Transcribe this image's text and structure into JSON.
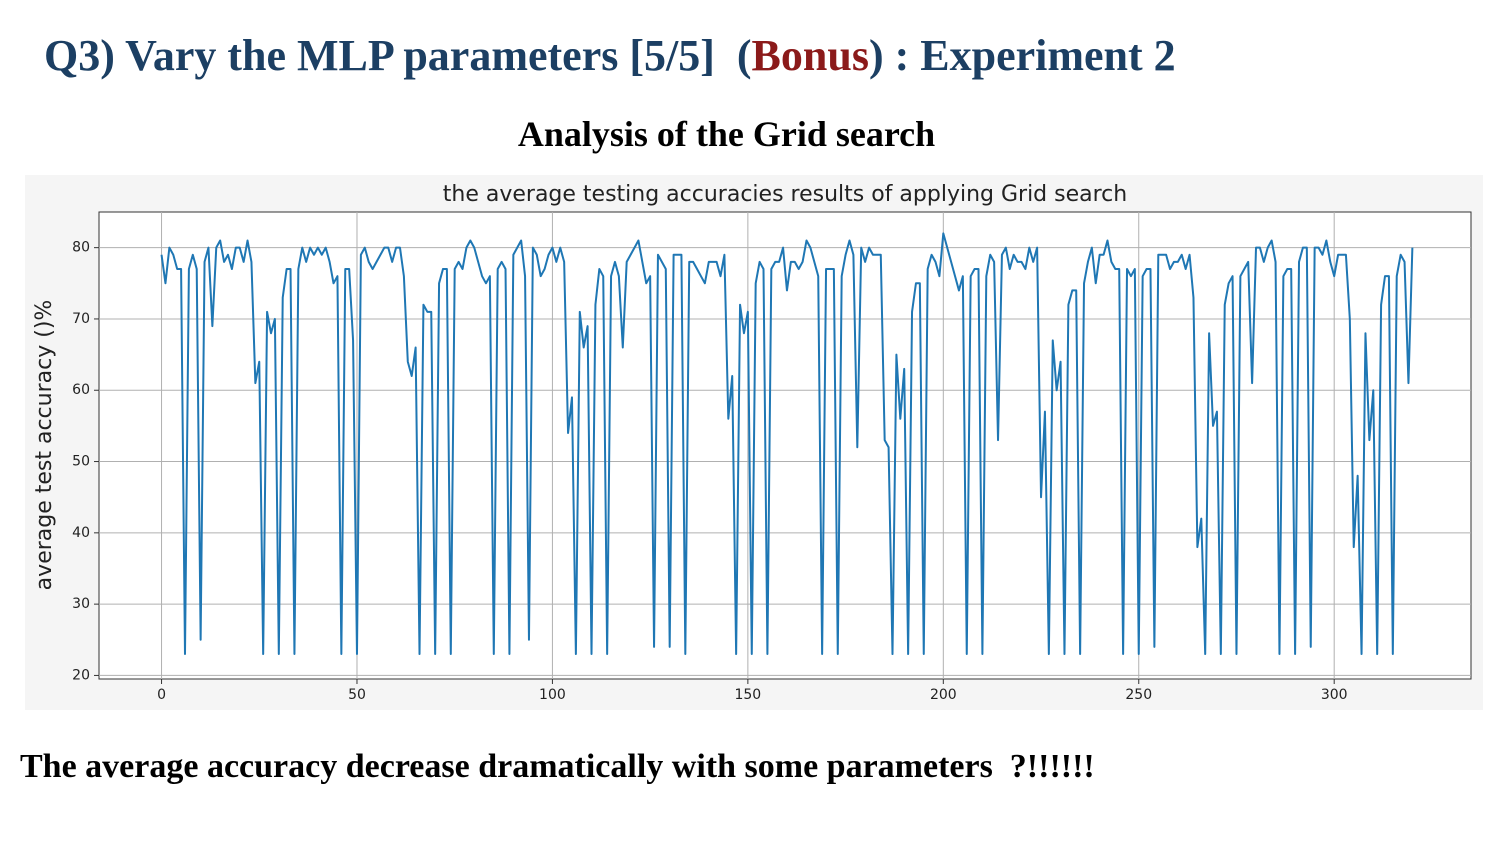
{
  "title_before": "Q3) Vary the MLP parameters [5/5]  (",
  "title_highlight": "Bonus",
  "title_after": ") : Experiment 2",
  "subtitle": "Analysis of the Grid search",
  "footer": "The average accuracy decrease dramatically with some parameters  ?!!!!!!",
  "chart_data": {
    "type": "line",
    "title": "the average testing accuracies results of applying Grid search",
    "ylabel": "average test accuracy ()%",
    "color": "#1f77b4",
    "grid": true,
    "xlim": [
      -16,
      335
    ],
    "ylim": [
      19.5,
      85
    ],
    "xticks": [
      0,
      50,
      100,
      150,
      200,
      250,
      300
    ],
    "yticks": [
      20,
      30,
      40,
      50,
      60,
      70,
      80
    ],
    "x": [
      0,
      1,
      2,
      3,
      4,
      5,
      6,
      7,
      8,
      9,
      10,
      11,
      12,
      13,
      14,
      15,
      16,
      17,
      18,
      19,
      20,
      21,
      22,
      23,
      24,
      25,
      26,
      27,
      28,
      29,
      30,
      31,
      32,
      33,
      34,
      35,
      36,
      37,
      38,
      39,
      40,
      41,
      42,
      43,
      44,
      45,
      46,
      47,
      48,
      49,
      50,
      51,
      52,
      53,
      54,
      55,
      56,
      57,
      58,
      59,
      60,
      61,
      62,
      63,
      64,
      65,
      66,
      67,
      68,
      69,
      70,
      71,
      72,
      73,
      74,
      75,
      76,
      77,
      78,
      79,
      80,
      81,
      82,
      83,
      84,
      85,
      86,
      87,
      88,
      89,
      90,
      91,
      92,
      93,
      94,
      95,
      96,
      97,
      98,
      99,
      100,
      101,
      102,
      103,
      104,
      105,
      106,
      107,
      108,
      109,
      110,
      111,
      112,
      113,
      114,
      115,
      116,
      117,
      118,
      119,
      120,
      121,
      122,
      123,
      124,
      125,
      126,
      127,
      128,
      129,
      130,
      131,
      132,
      133,
      134,
      135,
      136,
      137,
      138,
      139,
      140,
      141,
      142,
      143,
      144,
      145,
      146,
      147,
      148,
      149,
      150,
      151,
      152,
      153,
      154,
      155,
      156,
      157,
      158,
      159,
      160,
      161,
      162,
      163,
      164,
      165,
      166,
      167,
      168,
      169,
      170,
      171,
      172,
      173,
      174,
      175,
      176,
      177,
      178,
      179,
      180,
      181,
      182,
      183,
      184,
      185,
      186,
      187,
      188,
      189,
      190,
      191,
      192,
      193,
      194,
      195,
      196,
      197,
      198,
      199,
      200,
      201,
      202,
      203,
      204,
      205,
      206,
      207,
      208,
      209,
      210,
      211,
      212,
      213,
      214,
      215,
      216,
      217,
      218,
      219,
      220,
      221,
      222,
      223,
      224,
      225,
      226,
      227,
      228,
      229,
      230,
      231,
      232,
      233,
      234,
      235,
      236,
      237,
      238,
      239,
      240,
      241,
      242,
      243,
      244,
      245,
      246,
      247,
      248,
      249,
      250,
      251,
      252,
      253,
      254,
      255,
      256,
      257,
      258,
      259,
      260,
      261,
      262,
      263,
      264,
      265,
      266,
      267,
      268,
      269,
      270,
      271,
      272,
      273,
      274,
      275,
      276,
      277,
      278,
      279,
      280,
      281,
      282,
      283,
      284,
      285,
      286,
      287,
      288,
      289,
      290,
      291,
      292,
      293,
      294,
      295,
      296,
      297,
      298,
      299,
      300,
      301,
      302,
      303,
      304,
      305,
      306,
      307,
      308,
      309,
      310,
      311,
      312,
      313,
      314,
      315,
      316,
      317,
      318,
      319,
      320
    ],
    "values": [
      79,
      75,
      80,
      79,
      77,
      77,
      23,
      77,
      79,
      77,
      25,
      78,
      80,
      69,
      80,
      81,
      78,
      79,
      77,
      80,
      80,
      78,
      81,
      78,
      61,
      64,
      23,
      71,
      68,
      70,
      23,
      73,
      77,
      77,
      23,
      77,
      80,
      78,
      80,
      79,
      80,
      79,
      80,
      78,
      75,
      76,
      23,
      77,
      77,
      67,
      23,
      79,
      80,
      78,
      77,
      78,
      79,
      80,
      80,
      78,
      80,
      80,
      76,
      64,
      62,
      66,
      23,
      72,
      71,
      71,
      23,
      75,
      77,
      77,
      23,
      77,
      78,
      77,
      80,
      81,
      80,
      78,
      76,
      75,
      76,
      23,
      77,
      78,
      77,
      23,
      79,
      80,
      81,
      76,
      25,
      80,
      79,
      76,
      77,
      79,
      80,
      78,
      80,
      78,
      54,
      59,
      23,
      71,
      66,
      69,
      23,
      72,
      77,
      76,
      23,
      76,
      78,
      76,
      66,
      78,
      79,
      80,
      81,
      78,
      75,
      76,
      24,
      79,
      78,
      77,
      24,
      79,
      79,
      79,
      23,
      78,
      78,
      77,
      76,
      75,
      78,
      78,
      78,
      76,
      79,
      56,
      62,
      23,
      72,
      68,
      71,
      23,
      75,
      78,
      77,
      23,
      77,
      78,
      78,
      80,
      74,
      78,
      78,
      77,
      78,
      81,
      80,
      78,
      76,
      23,
      77,
      77,
      77,
      23,
      76,
      79,
      81,
      79,
      52,
      80,
      78,
      80,
      79,
      79,
      79,
      53,
      52,
      23,
      65,
      56,
      63,
      23,
      71,
      75,
      75,
      23,
      77,
      79,
      78,
      76,
      82,
      80,
      78,
      76,
      74,
      76,
      23,
      76,
      77,
      77,
      23,
      76,
      79,
      78,
      53,
      79,
      80,
      77,
      79,
      78,
      78,
      77,
      80,
      78,
      80,
      45,
      57,
      23,
      67,
      60,
      64,
      23,
      72,
      74,
      74,
      23,
      75,
      78,
      80,
      75,
      79,
      79,
      81,
      78,
      77,
      77,
      23,
      77,
      76,
      77,
      23,
      76,
      77,
      77,
      24,
      79,
      79,
      79,
      77,
      78,
      78,
      79,
      77,
      79,
      73,
      38,
      42,
      23,
      68,
      55,
      57,
      23,
      72,
      75,
      76,
      23,
      76,
      77,
      78,
      61,
      80,
      80,
      78,
      80,
      81,
      78,
      23,
      76,
      77,
      77,
      23,
      78,
      80,
      80,
      24,
      80,
      80,
      79,
      81,
      78,
      76,
      79,
      79,
      79,
      70,
      38,
      48,
      23,
      68,
      53,
      60,
      23,
      72,
      76,
      76,
      23,
      76,
      79,
      78,
      61,
      80
    ]
  }
}
